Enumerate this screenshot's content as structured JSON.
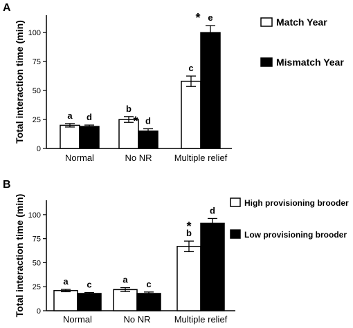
{
  "chart_data": [
    {
      "type": "bar",
      "panel": "A",
      "ylabel": "Total interaction time (min)",
      "categories": [
        "Normal",
        "No NR",
        "Multiple relief"
      ],
      "ylim": [
        0,
        115
      ],
      "yticks": [
        0,
        25,
        50,
        75,
        100
      ],
      "series": [
        {
          "name": "Match Year",
          "color": "#ffffff",
          "values": [
            20,
            25,
            58
          ],
          "errors": [
            1.5,
            2.5,
            4.5
          ],
          "letters": [
            "a",
            "b",
            "c"
          ],
          "stars": [
            false,
            false,
            false
          ]
        },
        {
          "name": "Mismatch Year",
          "color": "#000000",
          "values": [
            19,
            15,
            100
          ],
          "errors": [
            1.2,
            2,
            6
          ],
          "letters": [
            "d",
            "d",
            "e"
          ],
          "stars": [
            false,
            true,
            true
          ]
        }
      ],
      "legend": "right"
    },
    {
      "type": "bar",
      "panel": "B",
      "ylabel": "Total interaction time (min)",
      "categories": [
        "Normal",
        "No NR",
        "Multiple relief"
      ],
      "ylim": [
        0,
        115
      ],
      "yticks": [
        0,
        25,
        50,
        75,
        100
      ],
      "series": [
        {
          "name": "High provisioning brooder",
          "color": "#ffffff",
          "values": [
            21,
            22,
            67
          ],
          "errors": [
            1.2,
            2,
            5.5
          ],
          "letters": [
            "a",
            "a",
            "b"
          ],
          "stars": [
            false,
            false,
            true
          ]
        },
        {
          "name": "Low provisioning brooder",
          "color": "#000000",
          "values": [
            18,
            18,
            91
          ],
          "errors": [
            1,
            1.5,
            5
          ],
          "letters": [
            "c",
            "c",
            "d"
          ],
          "stars": [
            false,
            false,
            false
          ]
        }
      ],
      "legend": "right"
    }
  ]
}
